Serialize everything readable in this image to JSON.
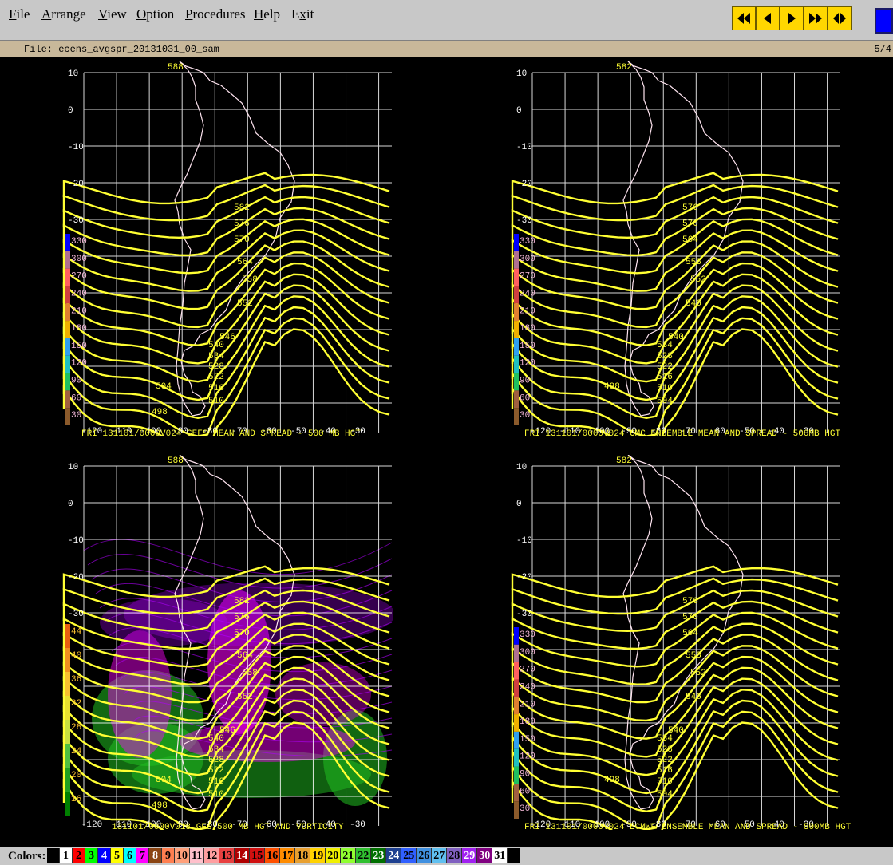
{
  "menu": [
    "File",
    "Arrange",
    "View",
    "Option",
    "Procedures",
    "Help",
    "Exit"
  ],
  "menu_underline": [
    "F",
    "A",
    "V",
    "O",
    "P",
    "H",
    "x"
  ],
  "animation_controls": [
    "rewind-icon",
    "step-back-icon",
    "play-forward-icon",
    "fast-forward-icon",
    "rock-icon"
  ],
  "file": {
    "label": "File: ecens_avgspr_20131031_00_sam",
    "frame": "5/4"
  },
  "panels": [
    {
      "title": "FRI 131101/0000V024  GEFS MEAN AND SPREAD - 500 MB HGT",
      "lat_labels": [
        "10",
        "0",
        "-10",
        "-20",
        "-30"
      ],
      "lon_labels": [
        "-120",
        "-110",
        "-100",
        "-90",
        "-80",
        "-70",
        "-60",
        "-50",
        "-40",
        "-30"
      ],
      "contour_labels": [
        "588",
        "582",
        "576",
        "570",
        "564",
        "558",
        "552",
        "546",
        "540",
        "534",
        "528",
        "522",
        "516",
        "510",
        "504",
        "498"
      ],
      "scale_labels": [
        "330",
        "300",
        "270",
        "240",
        "210",
        "180",
        "150",
        "120",
        "90",
        "60",
        "30"
      ]
    },
    {
      "title": "FRI 131101/0000V024  CMC ENSEMBLE MEAN AND SPREAD - 500MB HGT",
      "lat_labels": [
        "10",
        "0",
        "-10",
        "-20",
        "-30"
      ],
      "lon_labels": [
        "-120",
        "-110",
        "-100",
        "-90",
        "-80",
        "-70",
        "-60",
        "-50",
        "-40",
        "-30"
      ],
      "contour_labels": [
        "582",
        "576",
        "570",
        "564",
        "558",
        "552",
        "546",
        "540",
        "534",
        "528",
        "522",
        "516",
        "510",
        "504",
        "498"
      ],
      "scale_labels": [
        "330",
        "300",
        "270",
        "240",
        "210",
        "180",
        "150",
        "120",
        "90",
        "60",
        "30"
      ]
    },
    {
      "title": "131101/0000V018  GFS 500 MB HGT AND VORTICITY",
      "lat_labels": [
        "10",
        "0",
        "-10",
        "-20",
        "-30"
      ],
      "lon_labels": [
        "-120",
        "-110",
        "-100",
        "-90",
        "-80",
        "-70",
        "-60",
        "-50",
        "-40",
        "-30"
      ],
      "contour_labels": [
        "588",
        "582",
        "576",
        "570",
        "564",
        "558",
        "552",
        "546",
        "540",
        "534",
        "528",
        "522",
        "516",
        "510",
        "504",
        "498"
      ],
      "scale_labels": [
        "44",
        "40",
        "36",
        "32",
        "28",
        "24",
        "20",
        "16"
      ]
    },
    {
      "title": "FRI 131101/0000V024  ECMWF ENSEMBLE MEAN AND SPREAD - 500MB HGT",
      "lat_labels": [
        "10",
        "0",
        "-10",
        "-20",
        "-30"
      ],
      "lon_labels": [
        "-120",
        "-110",
        "-100",
        "-90",
        "-80",
        "-70",
        "-60",
        "-50",
        "-40",
        "-30"
      ],
      "contour_labels": [
        "582",
        "576",
        "570",
        "564",
        "558",
        "552",
        "546",
        "540",
        "534",
        "528",
        "522",
        "516",
        "510",
        "504",
        "498"
      ],
      "scale_labels": [
        "330",
        "300",
        "270",
        "240",
        "210",
        "180",
        "150",
        "120",
        "90",
        "60",
        "30"
      ]
    }
  ],
  "colors": {
    "label": "Colors:",
    "swatches": [
      {
        "n": "",
        "c": "#000000"
      },
      {
        "n": "1",
        "c": "#ffffff"
      },
      {
        "n": "2",
        "c": "#ff0000"
      },
      {
        "n": "3",
        "c": "#00ff00"
      },
      {
        "n": "4",
        "c": "#0000ff"
      },
      {
        "n": "5",
        "c": "#ffff00"
      },
      {
        "n": "6",
        "c": "#00ffff"
      },
      {
        "n": "7",
        "c": "#ff00ff"
      },
      {
        "n": "8",
        "c": "#8b4513"
      },
      {
        "n": "9",
        "c": "#ff7f50"
      },
      {
        "n": "10",
        "c": "#ffa07a"
      },
      {
        "n": "11",
        "c": "#ffc0cb"
      },
      {
        "n": "12",
        "c": "#ff9ea0"
      },
      {
        "n": "13",
        "c": "#e84040"
      },
      {
        "n": "14",
        "c": "#b00000"
      },
      {
        "n": "15",
        "c": "#d01010"
      },
      {
        "n": "16",
        "c": "#ff5000"
      },
      {
        "n": "17",
        "c": "#ff8c00"
      },
      {
        "n": "18",
        "c": "#e8a030"
      },
      {
        "n": "19",
        "c": "#ffd200"
      },
      {
        "n": "20",
        "c": "#f0f000"
      },
      {
        "n": "21",
        "c": "#90ff30"
      },
      {
        "n": "22",
        "c": "#30c030"
      },
      {
        "n": "23",
        "c": "#007000"
      },
      {
        "n": "24",
        "c": "#1e4090"
      },
      {
        "n": "25",
        "c": "#3060ff"
      },
      {
        "n": "26",
        "c": "#4090e0"
      },
      {
        "n": "27",
        "c": "#60c0f0"
      },
      {
        "n": "28",
        "c": "#8060c0"
      },
      {
        "n": "29",
        "c": "#a020f0"
      },
      {
        "n": "30",
        "c": "#800080"
      },
      {
        "n": "31",
        "c": "#ffffff"
      },
      {
        "n": "",
        "c": "#000000"
      }
    ]
  },
  "accent": {
    "contour": "#ffff33",
    "grid": "#ffffff",
    "coast": "#ffe4f0",
    "vorticity": "#b000ff",
    "vort_fill": "#ff00ff",
    "vort_green": "#20c020"
  }
}
